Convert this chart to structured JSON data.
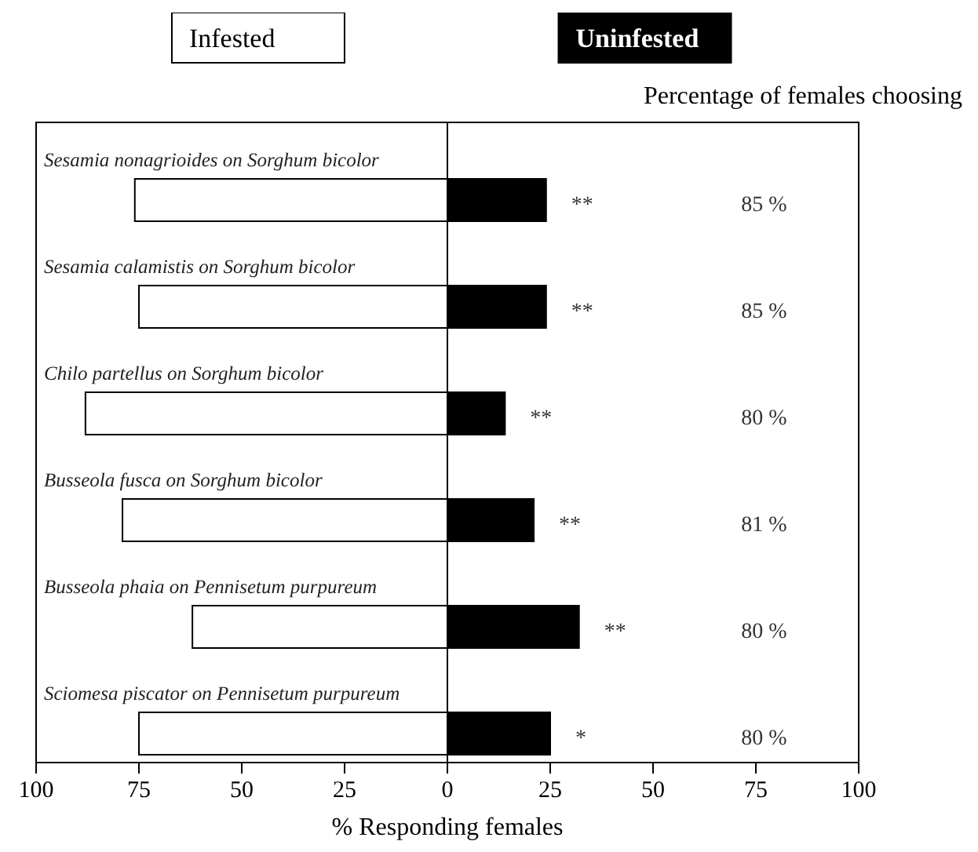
{
  "chart_data": {
    "type": "bar",
    "orientation": "horizontal",
    "stacked": true,
    "xlabel": "% Responding females",
    "categories": [
      "Sesamia nonagrioides on Sorghum bicolor",
      "Sesamia calamistis on Sorghum bicolor",
      "Chilo partellus on Sorghum bicolor",
      "Busseola fusca on Sorghum bicolor",
      "Busseola phaia on Pennisetum purpureum",
      "Sciomesa piscator on Pennisetum purpureum"
    ],
    "series": [
      {
        "name": "Infested",
        "color": "#ffffff",
        "values": [
          -76,
          -75,
          -88,
          -79,
          -62,
          -75
        ]
      },
      {
        "name": "Uninfested",
        "color": "#000000",
        "values": [
          24,
          24,
          14,
          21,
          32,
          25
        ]
      }
    ],
    "xlim": [
      -100,
      100
    ],
    "xticks": [
      {
        "value": -100,
        "label": "100"
      },
      {
        "value": -75,
        "label": "75"
      },
      {
        "value": -50,
        "label": "50"
      },
      {
        "value": -25,
        "label": "25"
      },
      0,
      25,
      50,
      75,
      100
    ],
    "legend": "top",
    "annotations": [
      "Percentage of females choosing",
      "85 %",
      "85 %",
      "80 %",
      "81 %",
      "80 %",
      "80 %",
      "**",
      "**",
      "**",
      "**",
      "**",
      "*"
    ]
  }
}
